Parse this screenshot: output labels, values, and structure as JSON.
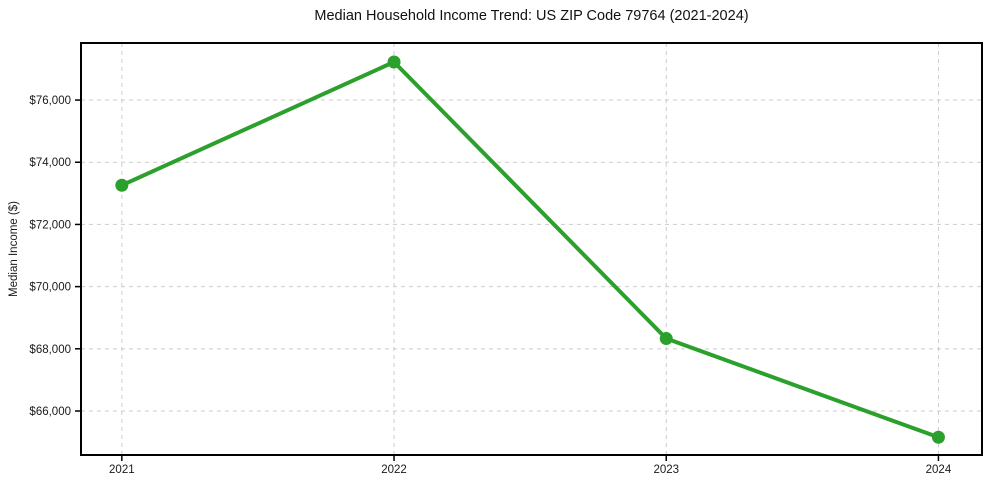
{
  "figure": {
    "background": "#ffffff"
  },
  "chart_data": {
    "type": "line",
    "title": "Median Household Income Trend: US ZIP Code 79764 (2021-2024)",
    "xlabel": "",
    "ylabel": "Median Income ($)",
    "x": [
      2021,
      2022,
      2023,
      2024
    ],
    "series": [
      {
        "name": "Median household income",
        "values": [
          73260,
          77225,
          68330,
          65155
        ]
      }
    ],
    "xticks": [
      {
        "v": 2021,
        "label": "2021"
      },
      {
        "v": 2022,
        "label": "2022"
      },
      {
        "v": 2023,
        "label": "2023"
      },
      {
        "v": 2024,
        "label": "2024"
      }
    ],
    "yticks": [
      {
        "v": 66000,
        "label": "$66,000"
      },
      {
        "v": 68000,
        "label": "$68,000"
      },
      {
        "v": 70000,
        "label": "$70,000"
      },
      {
        "v": 72000,
        "label": "$72,000"
      },
      {
        "v": 74000,
        "label": "$74,000"
      },
      {
        "v": 76000,
        "label": "$76,000"
      }
    ],
    "xlim": [
      2020.85,
      2024.16
    ],
    "ylim": [
      64585,
      77835
    ],
    "grid": true,
    "grid_style": "dashed",
    "legend_position": "none",
    "line_color": "#2ca02c",
    "marker": "circle",
    "grid_color": "#cccccc",
    "axis_color": "#000000",
    "tick_label_color": "#1a1a1a",
    "title_color": "#111111"
  }
}
